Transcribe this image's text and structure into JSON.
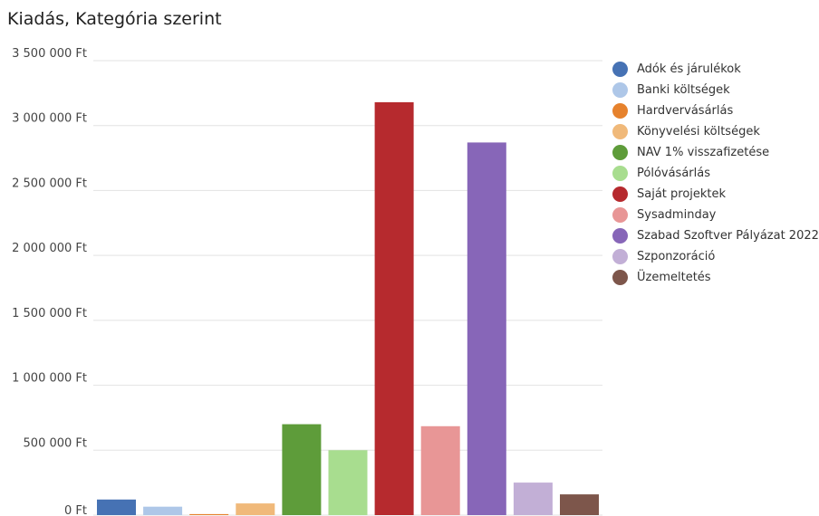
{
  "chart_data": {
    "type": "bar",
    "title": "Kiadás, Kategória szerint",
    "y_ticks": [
      "0 Ft",
      "500 000 Ft",
      "1 000 000 Ft",
      "1 500 000 Ft",
      "2 000 000 Ft",
      "2 500 000 Ft",
      "3 000 000 Ft",
      "3 500 000 Ft"
    ],
    "y_tick_values": [
      0,
      500000,
      1000000,
      1500000,
      2000000,
      2500000,
      3000000,
      3500000
    ],
    "ylim": [
      0,
      3500000
    ],
    "grid": true,
    "legend_position": "right",
    "categories": [
      "Adók és járulékok",
      "Banki költségek",
      "Hardvervásárlás",
      "Könyvelési költségek",
      "NAV 1% visszafizetése",
      "Pólóvásárlás",
      "Saját projektek",
      "Sysadminday",
      "Szabad Szoftver Pályázat 2022",
      "Szponzoráció",
      "Üzemeltetés"
    ],
    "values": [
      120000,
      65000,
      8000,
      90000,
      700000,
      500000,
      3180000,
      685000,
      2870000,
      250000,
      160000
    ],
    "colors": [
      "#4672b4",
      "#aec7e8",
      "#e6822d",
      "#f0b97a",
      "#5e9c3a",
      "#a8dd8f",
      "#b62a2e",
      "#e89696",
      "#8766b8",
      "#c2afd6",
      "#7d564b"
    ]
  }
}
